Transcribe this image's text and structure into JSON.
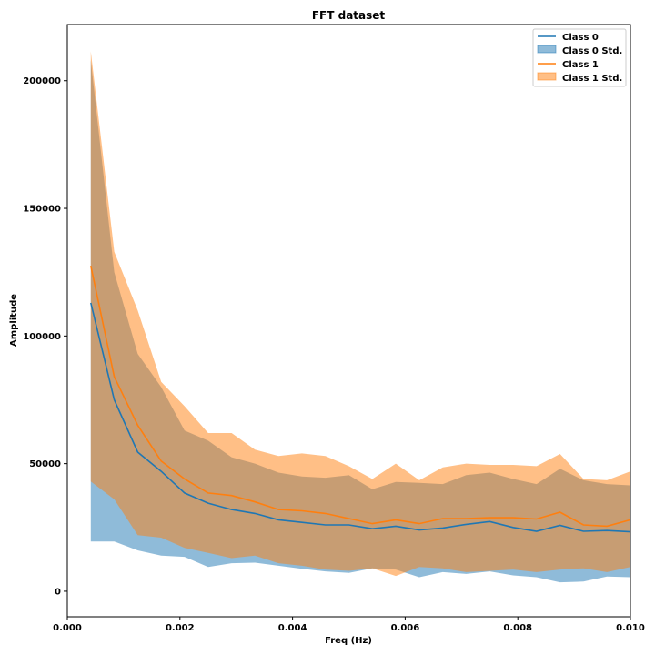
{
  "chart_data": {
    "type": "area",
    "title": "FFT dataset",
    "xlabel": "Freq (Hz)",
    "ylabel": "Amplitude",
    "xlim": [
      0.0,
      0.01
    ],
    "ylim": [
      -10000,
      222000
    ],
    "xticks": [
      0.0,
      0.002,
      0.004,
      0.006,
      0.008,
      0.01
    ],
    "xtick_labels": [
      "0.000",
      "0.002",
      "0.004",
      "0.006",
      "0.008",
      "0.010"
    ],
    "yticks": [
      0,
      50000,
      100000,
      150000,
      200000
    ],
    "ytick_labels": [
      "0",
      "50000",
      "100000",
      "150000",
      "200000"
    ],
    "grid": false,
    "legend_position": "top-right",
    "x": [
      0.000417,
      0.000833,
      0.00125,
      0.001667,
      0.002083,
      0.0025,
      0.002917,
      0.003333,
      0.00375,
      0.004167,
      0.004583,
      0.005,
      0.005417,
      0.005833,
      0.00625,
      0.006667,
      0.007083,
      0.0075,
      0.007917,
      0.008333,
      0.00875,
      0.009167,
      0.009583,
      0.01
    ],
    "series": [
      {
        "name": "Class 0",
        "color": "#1f77b4",
        "mean": [
          113000,
          75000,
          54500,
          47000,
          38500,
          34500,
          32000,
          30500,
          28000,
          27000,
          26000,
          26000,
          24500,
          25500,
          24000,
          24800,
          26200,
          27300,
          25000,
          23500,
          25800,
          23500,
          23800,
          23300
        ],
        "std_upper": [
          208000,
          125000,
          93000,
          80000,
          63000,
          59000,
          52500,
          50000,
          46500,
          45000,
          44500,
          45500,
          40000,
          42800,
          42500,
          42000,
          45500,
          46500,
          44000,
          42000,
          48000,
          43500,
          42000,
          41500
        ],
        "std_lower": [
          19500,
          19500,
          16000,
          14000,
          13500,
          9500,
          11000,
          11200,
          10000,
          8800,
          7800,
          7200,
          9000,
          8500,
          5500,
          7500,
          6800,
          7800,
          6200,
          5500,
          3500,
          3800,
          5800,
          5500
        ],
        "std_label": "Class 0 Std."
      },
      {
        "name": "Class 1",
        "color": "#ff7f0e",
        "mean": [
          127500,
          84000,
          65000,
          51000,
          44000,
          38500,
          37500,
          35000,
          32000,
          31500,
          30500,
          28500,
          26500,
          28000,
          26500,
          28500,
          28500,
          28800,
          28800,
          28300,
          31000,
          26000,
          25500,
          28000
        ],
        "std_upper": [
          211500,
          133000,
          110000,
          82000,
          72500,
          62000,
          62000,
          55500,
          53000,
          54000,
          53000,
          49000,
          44000,
          50000,
          43500,
          48500,
          50000,
          49500,
          49500,
          49000,
          53800,
          44000,
          43500,
          47000
        ],
        "std_lower": [
          43000,
          36000,
          22000,
          21000,
          17000,
          15000,
          13000,
          14000,
          11000,
          10000,
          8500,
          8000,
          9000,
          6000,
          9500,
          9000,
          7500,
          8000,
          8500,
          7500,
          8500,
          9000,
          7500,
          9500
        ],
        "std_label": "Class 1 Std."
      }
    ],
    "legend": [
      "Class 0",
      "Class 0 Std.",
      "Class 1",
      "Class 1 Std."
    ]
  }
}
